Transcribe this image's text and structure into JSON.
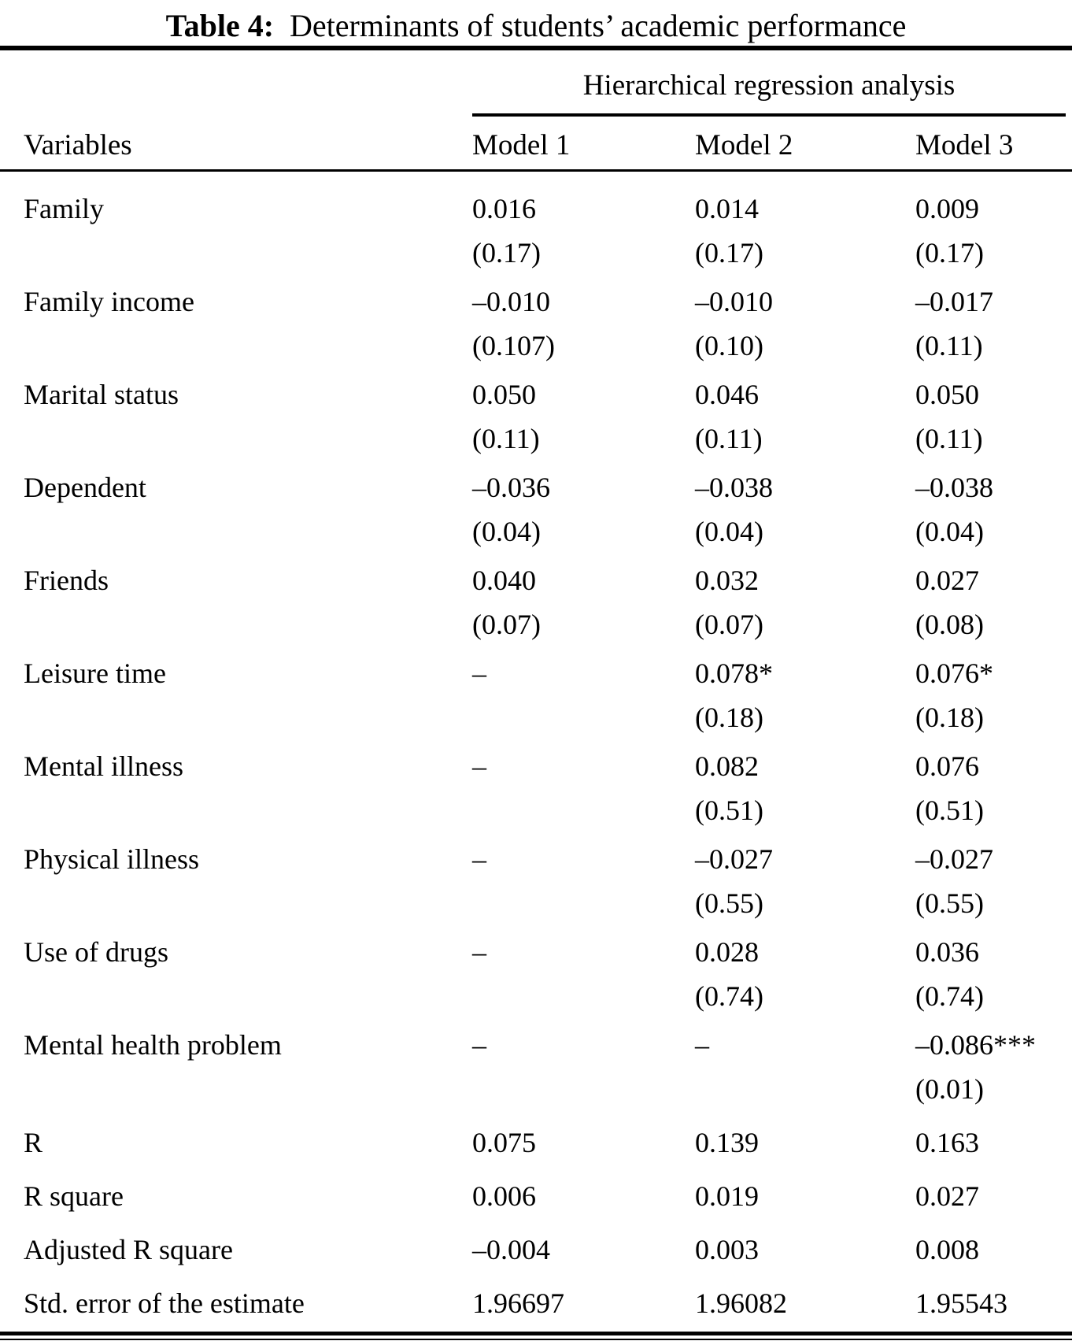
{
  "title": {
    "prefix": "Table 4:",
    "text": "Determinants of students’ academic performance"
  },
  "table": {
    "spanner_header": "Hierarchical regression analysis",
    "column_headers": [
      "Variables",
      "Model 1",
      "Model 2",
      "Model 3"
    ],
    "variable_rows": [
      {
        "variable": "Family",
        "models": [
          {
            "coef": "0.016",
            "se": "(0.17)"
          },
          {
            "coef": "0.014",
            "se": "(0.17)"
          },
          {
            "coef": "0.009",
            "se": "(0.17)"
          }
        ]
      },
      {
        "variable": "Family income",
        "models": [
          {
            "coef": "–0.010",
            "se": "(0.107)"
          },
          {
            "coef": "–0.010",
            "se": "(0.10)"
          },
          {
            "coef": "–0.017",
            "se": "(0.11)"
          }
        ]
      },
      {
        "variable": "Marital status",
        "models": [
          {
            "coef": "0.050",
            "se": "(0.11)"
          },
          {
            "coef": "0.046",
            "se": "(0.11)"
          },
          {
            "coef": "0.050",
            "se": "(0.11)"
          }
        ]
      },
      {
        "variable": "Dependent",
        "models": [
          {
            "coef": "–0.036",
            "se": "(0.04)"
          },
          {
            "coef": "–0.038",
            "se": "(0.04)"
          },
          {
            "coef": "–0.038",
            "se": "(0.04)"
          }
        ]
      },
      {
        "variable": "Friends",
        "models": [
          {
            "coef": "0.040",
            "se": "(0.07)"
          },
          {
            "coef": "0.032",
            "se": "(0.07)"
          },
          {
            "coef": "0.027",
            "se": "(0.08)"
          }
        ]
      },
      {
        "variable": "Leisure time",
        "models": [
          {
            "coef": "–",
            "se": ""
          },
          {
            "coef": "0.078*",
            "se": "(0.18)"
          },
          {
            "coef": "0.076*",
            "se": "(0.18)"
          }
        ]
      },
      {
        "variable": "Mental illness",
        "models": [
          {
            "coef": "–",
            "se": ""
          },
          {
            "coef": "0.082",
            "se": "(0.51)"
          },
          {
            "coef": "0.076",
            "se": "(0.51)"
          }
        ]
      },
      {
        "variable": "Physical illness",
        "models": [
          {
            "coef": "–",
            "se": ""
          },
          {
            "coef": "–0.027",
            "se": "(0.55)"
          },
          {
            "coef": "–0.027",
            "se": "(0.55)"
          }
        ]
      },
      {
        "variable": "Use of drugs",
        "models": [
          {
            "coef": "–",
            "se": ""
          },
          {
            "coef": "0.028",
            "se": "(0.74)"
          },
          {
            "coef": "0.036",
            "se": "(0.74)"
          }
        ]
      },
      {
        "variable": "Mental health problem",
        "models": [
          {
            "coef": "–",
            "se": ""
          },
          {
            "coef": "–",
            "se": ""
          },
          {
            "coef": "–0.086***",
            "se": "(0.01)"
          }
        ]
      }
    ],
    "summary_rows": [
      {
        "variable": "R",
        "values": [
          "0.075",
          "0.139",
          "0.163"
        ]
      },
      {
        "variable": "R square",
        "values": [
          "0.006",
          "0.019",
          "0.027"
        ]
      },
      {
        "variable": "Adjusted R square",
        "values": [
          "–0.004",
          "0.003",
          "0.008"
        ]
      },
      {
        "variable": "Std. error of the estimate",
        "values": [
          "1.96697",
          "1.96082",
          "1.95543"
        ]
      }
    ]
  },
  "colors": {
    "background": "#ffffff",
    "text": "#000000",
    "rule": "#000000"
  }
}
